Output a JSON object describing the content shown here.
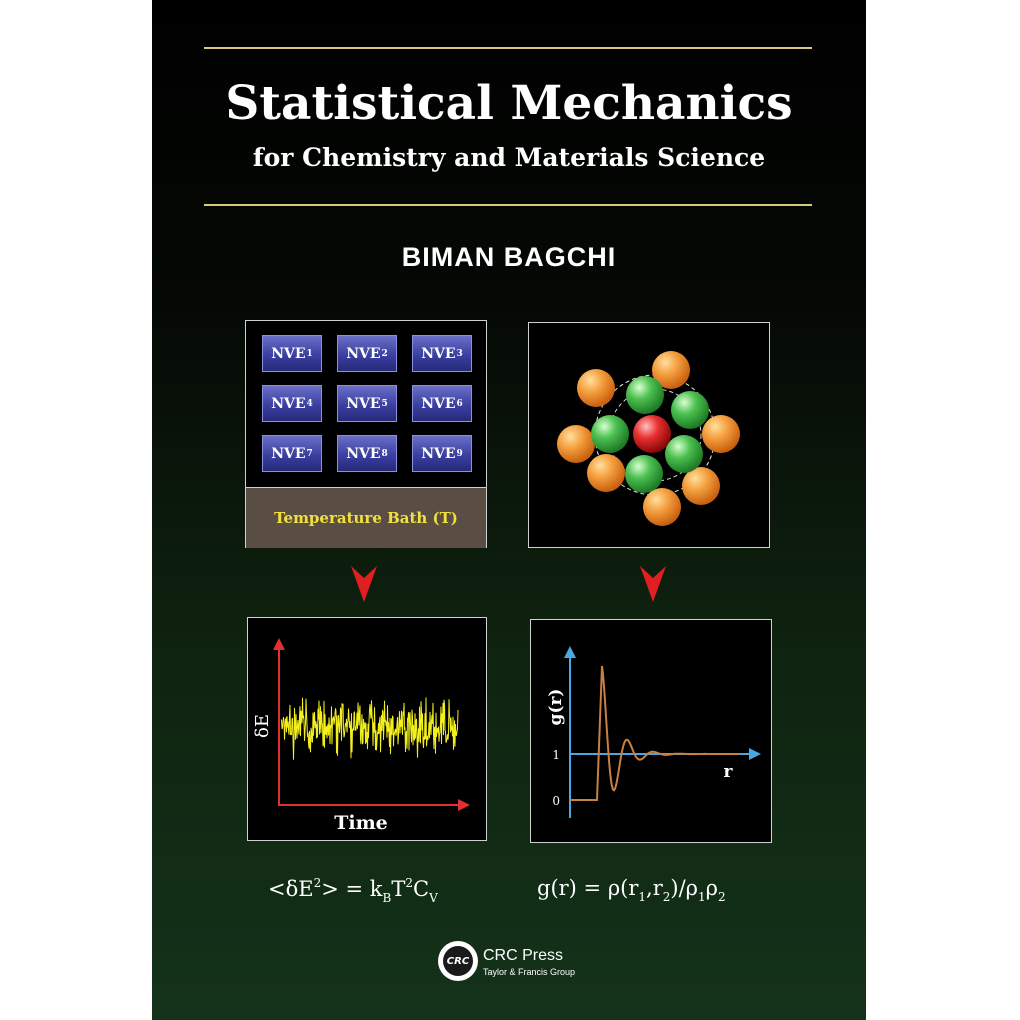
{
  "title": "Statistical Mechanics",
  "subtitle": "for Chemistry and Materials Science",
  "author": "BIMAN BAGCHI",
  "ensemble": {
    "boxes": [
      {
        "base": "NVE",
        "sub": "1"
      },
      {
        "base": "NVE",
        "sub": "2"
      },
      {
        "base": "NVE",
        "sub": "3"
      },
      {
        "base": "NVE",
        "sub": "4"
      },
      {
        "base": "NVE",
        "sub": "5"
      },
      {
        "base": "NVE",
        "sub": "6"
      },
      {
        "base": "NVE",
        "sub": "7"
      },
      {
        "base": "NVE",
        "sub": "8"
      },
      {
        "base": "NVE",
        "sub": "9"
      }
    ],
    "bath_label": "Temperature Bath (T)"
  },
  "energy_plot": {
    "ylabel": "δE",
    "xlabel": "Time"
  },
  "rdf_plot": {
    "ylabel": "g(r)",
    "xlabel": "r",
    "tick_one": "1",
    "tick_zero": "0"
  },
  "formulas": {
    "left": {
      "p1": "<δE",
      "sup1": "2",
      "p2": "> = k",
      "sub1": "B",
      "p3": "T",
      "sup2": "2",
      "p4": "C",
      "sub2": "V"
    },
    "right": {
      "p1": "g(r) = ρ(r",
      "sub1": "1",
      "p2": ",r",
      "sub2": "2",
      "p3": ")/ρ",
      "sub3": "1",
      "p4": "ρ",
      "sub4": "2"
    }
  },
  "publisher": {
    "logo_text": "CRC",
    "name": "CRC Press",
    "group": "Taylor & Francis Group"
  },
  "colors": {
    "rule": "#d9c77a",
    "bath_text": "#f0e040",
    "signal": "#f2ef1c",
    "rdf_curve": "#c88040",
    "axis_red": "#e03030",
    "axis_blue": "#4aa8e0",
    "arrow": "#e02020"
  }
}
